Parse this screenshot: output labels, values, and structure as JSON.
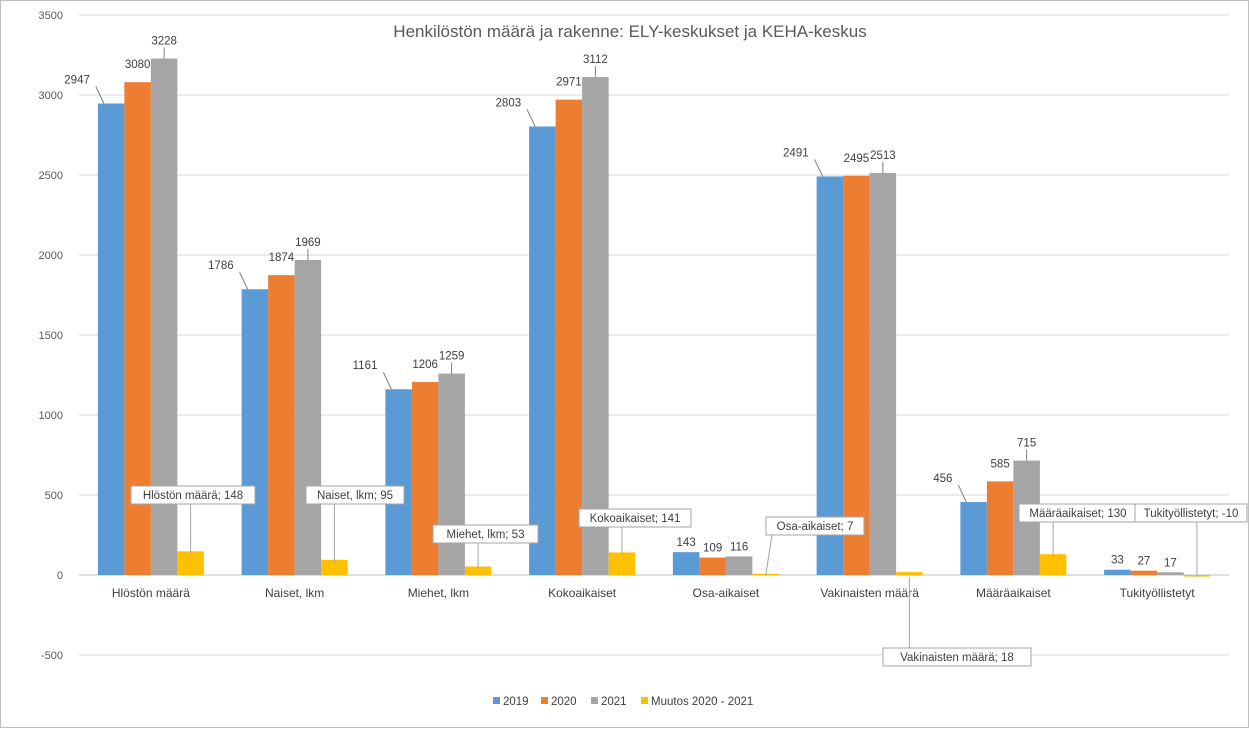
{
  "chart_data": {
    "type": "bar",
    "title": "Henkilöstön määrä ja rakenne:  ELY-keskukset ja KEHA-keskus",
    "categories": [
      "Hlöstön määrä",
      "Naiset, lkm",
      "Miehet, lkm",
      "Kokoaikaiset",
      "Osa-aikaiset",
      "Vakinaisten määrä",
      "Määräaikaiset",
      "Tukityöllistetyt"
    ],
    "series": [
      {
        "name": "2019",
        "color": "#5b9bd5",
        "values": [
          2947,
          1786,
          1161,
          2803,
          143,
          2491,
          456,
          33
        ]
      },
      {
        "name": "2020",
        "color": "#ed7d31",
        "values": [
          3080,
          1874,
          1206,
          2971,
          109,
          2495,
          585,
          27
        ]
      },
      {
        "name": "2021",
        "color": "#a5a5a5",
        "values": [
          3228,
          1969,
          1259,
          3112,
          116,
          2513,
          715,
          17
        ]
      },
      {
        "name": "Muutos 2020 - 2021",
        "color": "#ffc000",
        "values": [
          148,
          95,
          53,
          141,
          7,
          18,
          130,
          -10
        ]
      }
    ],
    "change_callouts": [
      "Hlöstön määrä; 148",
      "Naiset, lkm; 95",
      "Miehet, lkm; 53",
      "Kokoaikaiset; 141",
      "Osa-aikaiset; 7",
      "Vakinaisten määrä; 18",
      "Määräaikaiset; 130",
      "Tukityöllistetyt; -10"
    ],
    "y_ticks": [
      "-500",
      "0",
      "500",
      "1000",
      "1500",
      "2000",
      "2500",
      "3000",
      "3500"
    ],
    "ylim": [
      -500,
      3500
    ],
    "grid": true,
    "legend_position": "bottom"
  }
}
